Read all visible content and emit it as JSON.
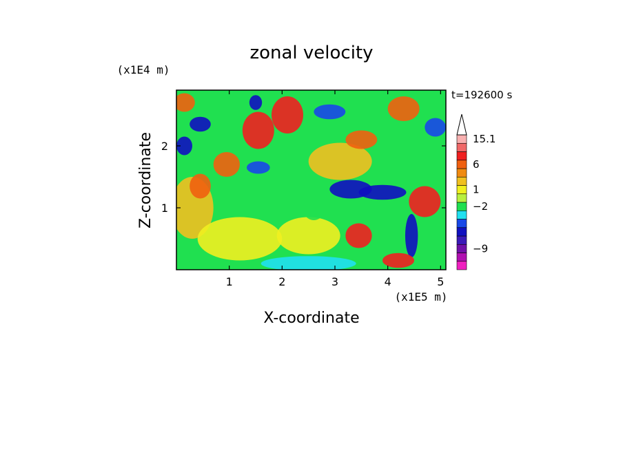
{
  "chart_data": {
    "type": "heatmap",
    "title": "zonal velocity",
    "xlabel": "X-coordinate",
    "ylabel": "Z-coordinate",
    "x_unit": "(x1E5 m)",
    "y_unit": "(x1E4 m)",
    "time_label": "t=192600 s",
    "xlim": [
      0,
      5.1
    ],
    "ylim": [
      0,
      2.9
    ],
    "x_ticks": [
      {
        "value": 1,
        "label": "1"
      },
      {
        "value": 2,
        "label": "2"
      },
      {
        "value": 3,
        "label": "3"
      },
      {
        "value": 4,
        "label": "4"
      },
      {
        "value": 5,
        "label": "5"
      }
    ],
    "y_ticks": [
      {
        "value": 1,
        "label": "1"
      },
      {
        "value": 2,
        "label": "2"
      }
    ],
    "colorbar": {
      "bins": [
        {
          "color": "#f020c0"
        },
        {
          "color": "#b010b0"
        },
        {
          "color": "#7010a8"
        },
        {
          "color": "#3a1ab8"
        },
        {
          "color": "#1010c0"
        },
        {
          "color": "#1848e8"
        },
        {
          "color": "#20e0f0"
        },
        {
          "color": "#20e050"
        },
        {
          "color": "#b8f040"
        },
        {
          "color": "#f0f020"
        },
        {
          "color": "#f0c020"
        },
        {
          "color": "#f08a10"
        },
        {
          "color": "#f06010"
        },
        {
          "color": "#f02020"
        },
        {
          "color": "#f06868"
        },
        {
          "color": "#f8b0b0"
        }
      ],
      "labels": [
        {
          "text": "15.1",
          "bin": 15.5
        },
        {
          "text": "6",
          "bin": 12.5
        },
        {
          "text": "1",
          "bin": 9.5
        },
        {
          "text": "−2",
          "bin": 7.5
        },
        {
          "text": "−9",
          "bin": 2.5
        }
      ],
      "extend": "max"
    },
    "field_features": [
      {
        "x": 0.3,
        "z": 1.0,
        "level": 10,
        "sx": 0.4,
        "sz": 0.5
      },
      {
        "x": 1.2,
        "z": 0.5,
        "level": 9,
        "sx": 0.8,
        "sz": 0.35
      },
      {
        "x": 2.5,
        "z": 0.55,
        "level": 9,
        "sx": 0.6,
        "sz": 0.3
      },
      {
        "x": 3.1,
        "z": 1.75,
        "level": 10,
        "sx": 0.6,
        "sz": 0.3
      },
      {
        "x": 0.45,
        "z": 2.35,
        "level": 4,
        "sx": 0.2,
        "sz": 0.12
      },
      {
        "x": 0.15,
        "z": 2.0,
        "level": 4,
        "sx": 0.15,
        "sz": 0.15
      },
      {
        "x": 1.5,
        "z": 2.7,
        "level": 4,
        "sx": 0.12,
        "sz": 0.12
      },
      {
        "x": 1.55,
        "z": 2.25,
        "level": 13,
        "sx": 0.3,
        "sz": 0.3
      },
      {
        "x": 0.95,
        "z": 1.7,
        "level": 12,
        "sx": 0.25,
        "sz": 0.2
      },
      {
        "x": 0.45,
        "z": 1.35,
        "level": 12,
        "sx": 0.2,
        "sz": 0.2
      },
      {
        "x": 1.55,
        "z": 1.65,
        "level": 5,
        "sx": 0.22,
        "sz": 0.1
      },
      {
        "x": 0.15,
        "z": 2.7,
        "level": 12,
        "sx": 0.2,
        "sz": 0.15
      },
      {
        "x": 2.1,
        "z": 2.5,
        "level": 13,
        "sx": 0.3,
        "sz": 0.3
      },
      {
        "x": 2.6,
        "z": 1.1,
        "level": 7,
        "sx": 0.25,
        "sz": 0.3
      },
      {
        "x": 3.3,
        "z": 1.3,
        "level": 4,
        "sx": 0.4,
        "sz": 0.15
      },
      {
        "x": 3.9,
        "z": 1.25,
        "level": 4,
        "sx": 0.45,
        "sz": 0.12
      },
      {
        "x": 4.45,
        "z": 0.55,
        "level": 4,
        "sx": 0.12,
        "sz": 0.35
      },
      {
        "x": 3.45,
        "z": 0.55,
        "level": 13,
        "sx": 0.25,
        "sz": 0.2
      },
      {
        "x": 4.2,
        "z": 0.15,
        "level": 13,
        "sx": 0.3,
        "sz": 0.12
      },
      {
        "x": 4.7,
        "z": 1.1,
        "level": 13,
        "sx": 0.3,
        "sz": 0.25
      },
      {
        "x": 2.9,
        "z": 2.55,
        "level": 5,
        "sx": 0.3,
        "sz": 0.12
      },
      {
        "x": 4.3,
        "z": 2.6,
        "level": 12,
        "sx": 0.3,
        "sz": 0.2
      },
      {
        "x": 2.5,
        "z": 0.1,
        "level": 6,
        "sx": 0.9,
        "sz": 0.12
      },
      {
        "x": 4.9,
        "z": 2.3,
        "level": 5,
        "sx": 0.2,
        "sz": 0.15
      },
      {
        "x": 3.5,
        "z": 2.1,
        "level": 12,
        "sx": 0.3,
        "sz": 0.15
      },
      {
        "x": 0.1,
        "z": 0.2,
        "level": 7,
        "sx": 0.2,
        "sz": 0.1
      }
    ]
  }
}
